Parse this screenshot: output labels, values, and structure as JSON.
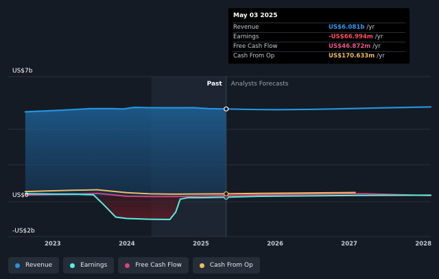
{
  "chart_data": {
    "type": "area",
    "y_unit": "US$",
    "ylim": [
      -2,
      7
    ],
    "y_tick_labels": [
      {
        "label": "US$7b",
        "value": 7
      },
      {
        "label": "US$0",
        "value": 0
      },
      {
        "label": "-US$2b",
        "value": -2
      }
    ],
    "xlim": [
      2022.4,
      2028.1
    ],
    "x_tick_labels": [
      "2023",
      "2024",
      "2025",
      "2026",
      "2027",
      "2028"
    ],
    "x_tick_values": [
      2023,
      2024,
      2025,
      2026,
      2027,
      2028
    ],
    "past_label": "Past",
    "forecast_label": "Analysts Forecasts",
    "divider_x": 2025.34,
    "highlight_start_x": 2024.33,
    "series": [
      {
        "name": "Revenue",
        "color": "#2394df",
        "x": [
          2022.63,
          2022.9,
          2023.15,
          2023.5,
          2023.8,
          2023.95,
          2024.1,
          2024.3,
          2024.6,
          2024.9,
          2025.1,
          2025.34,
          2025.6,
          2026.0,
          2026.5,
          2027.0,
          2027.5,
          2028.1
        ],
        "y": [
          5.88,
          5.94,
          6.0,
          6.1,
          6.1,
          6.08,
          6.19,
          6.17,
          6.16,
          6.17,
          6.1,
          6.08,
          6.05,
          6.03,
          6.05,
          6.1,
          6.16,
          6.22
        ]
      },
      {
        "name": "Earnings",
        "color": "#59f0e3",
        "x": [
          2022.63,
          2023.0,
          2023.3,
          2023.55,
          2023.68,
          2023.85,
          2024.0,
          2024.3,
          2024.58,
          2024.66,
          2024.72,
          2024.82,
          2025.0,
          2025.34,
          2025.8,
          2026.5,
          2027.2,
          2028.1
        ],
        "y": [
          0.18,
          0.15,
          0.15,
          0.1,
          -0.55,
          -1.45,
          -1.55,
          -1.6,
          -1.62,
          -1.1,
          -0.2,
          -0.1,
          -0.1,
          -0.067,
          0.0,
          0.03,
          0.06,
          0.08
        ]
      },
      {
        "name": "Free Cash Flow",
        "color": "#d6447d",
        "x": [
          2022.63,
          2023.0,
          2023.3,
          2023.6,
          2023.8,
          2024.0,
          2024.3,
          2024.6,
          2025.0,
          2025.34,
          2025.8,
          2026.5,
          2027.2,
          2028.1
        ],
        "y": [
          0.08,
          0.12,
          0.13,
          0.2,
          0.1,
          0.0,
          -0.02,
          -0.02,
          0.01,
          0.047,
          0.1,
          0.15,
          0.18,
          0.05
        ]
      },
      {
        "name": "Cash From Op",
        "color": "#f0bd63",
        "x": [
          2022.63,
          2023.0,
          2023.3,
          2023.6,
          2023.8,
          2024.0,
          2024.3,
          2024.6,
          2025.0,
          2025.34,
          2025.8,
          2026.5,
          2027.08
        ],
        "y": [
          0.33,
          0.38,
          0.42,
          0.45,
          0.35,
          0.25,
          0.17,
          0.15,
          0.16,
          0.17,
          0.2,
          0.23,
          0.26
        ]
      }
    ]
  },
  "tooltip": {
    "date": "May 03 2025",
    "rows": [
      {
        "label": "Revenue",
        "value": "US$6.081b",
        "unit": "/yr",
        "color": "#2e9bf0"
      },
      {
        "label": "Earnings",
        "value": "-US$66.994m",
        "unit": "/yr",
        "color": "#ff4d5e"
      },
      {
        "label": "Free Cash Flow",
        "value": "US$46.872m",
        "unit": "/yr",
        "color": "#e8558a"
      },
      {
        "label": "Cash From Op",
        "value": "US$170.633m",
        "unit": "/yr",
        "color": "#f0bd63"
      }
    ]
  },
  "legend": [
    {
      "label": "Revenue",
      "color": "#2394df"
    },
    {
      "label": "Earnings",
      "color": "#59f0e3"
    },
    {
      "label": "Free Cash Flow",
      "color": "#d6447d"
    },
    {
      "label": "Cash From Op",
      "color": "#f0bd63"
    }
  ]
}
